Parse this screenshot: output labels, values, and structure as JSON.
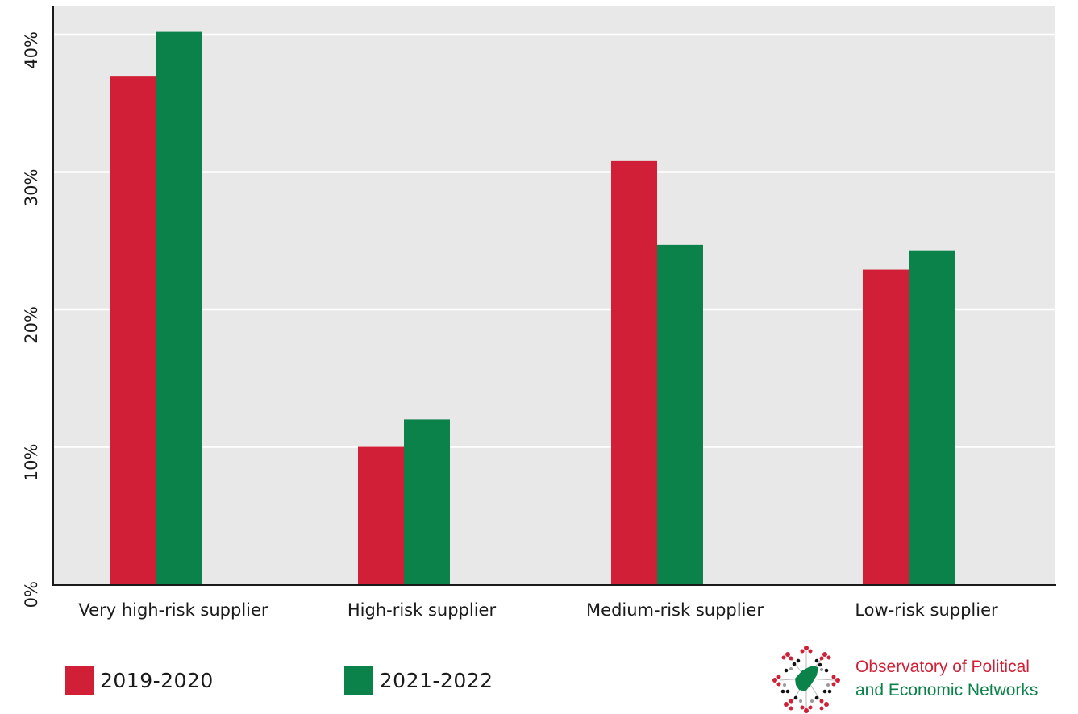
{
  "chart_data": {
    "type": "bar",
    "categories": [
      "Very high-risk supplier",
      "High-risk supplier",
      "Medium-risk supplier",
      "Low-risk supplier"
    ],
    "series": [
      {
        "name": "2019-2020",
        "values": [
          37,
          10,
          30.8,
          22.9
        ],
        "color": "#d01f36"
      },
      {
        "name": "2021-2022",
        "values": [
          40.2,
          12,
          24.7,
          24.3
        ],
        "color": "#0b824a"
      }
    ],
    "yticks": [
      "0%",
      "10%",
      "20%",
      "30%",
      "40%"
    ],
    "ylim": [
      0,
      40
    ],
    "grid": true,
    "plot_background": "#e8e8e8",
    "legend_position": "bottom-left",
    "title": "",
    "xlabel": "",
    "ylabel": ""
  },
  "branding": {
    "line1": "Observatory of Political",
    "line2": "and Economic Networks",
    "line1_color": "#d01f36",
    "line2_color": "#0b824a",
    "logo_icon": "network-map-icon"
  }
}
